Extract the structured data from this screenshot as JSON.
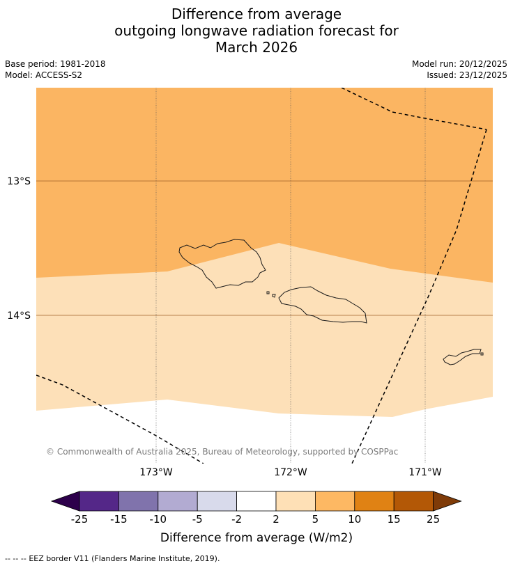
{
  "title": {
    "line1": "Difference from average",
    "line2": "outgoing longwave radiation forecast for",
    "line3": "March 2026"
  },
  "meta": {
    "base_period": "Base period: 1981-2018",
    "model": "Model: ACCESS-S2",
    "model_run": "Model run: 20/12/2025",
    "issued": "Issued: 23/12/2025"
  },
  "map": {
    "lat_labels": [
      "13°S",
      "14°S"
    ],
    "lon_labels": [
      "173°W",
      "172°W",
      "171°W"
    ],
    "copyright": "© Commonwealth of Australia 2025, Bureau of Meteorology, supported by COSPPac",
    "colors": {
      "band_5_10": "#fbb562",
      "band_2_5": "#fde0b8",
      "band_neutral": "#ffffff"
    }
  },
  "colorbar": {
    "label": "Difference from average (W/m2)",
    "ticks": [
      "-25",
      "-15",
      "-10",
      "-5",
      "-2",
      "2",
      "5",
      "10",
      "15",
      "25"
    ],
    "colors": [
      "#2d004b",
      "#542788",
      "#8073ac",
      "#b2abd2",
      "#d8daeb",
      "#ffffff",
      "#fee0b6",
      "#fdb863",
      "#e08214",
      "#b35806",
      "#7f3b08"
    ]
  },
  "footer": {
    "legend_symbol": "--  --  --",
    "legend_text": "EEZ border V11 (Flanders Marine Institute, 2019)."
  }
}
